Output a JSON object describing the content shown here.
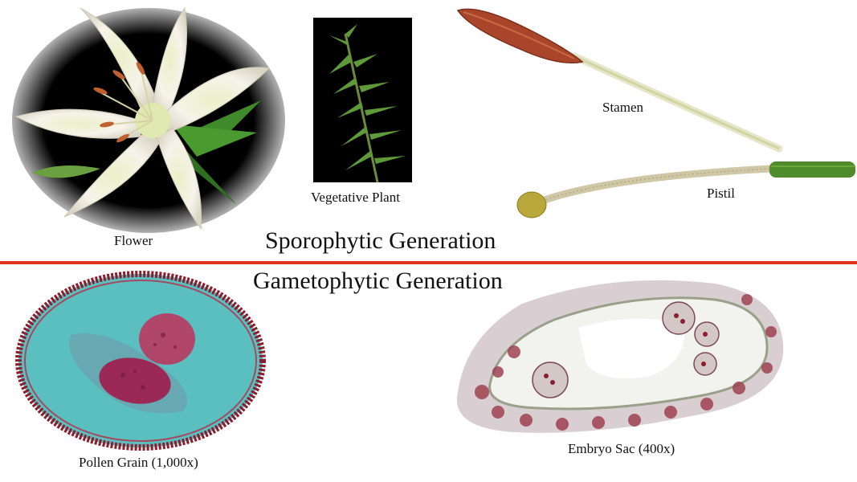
{
  "sporophyte": {
    "heading": "Sporophytic Generation",
    "flower_label": "Flower",
    "vegetative_label": "Vegetative Plant",
    "stamen_label": "Stamen",
    "pistil_label": "Pistil"
  },
  "gametophyte": {
    "heading": "Gametophytic Generation",
    "pollen_label": "Pollen Grain (1,000x)",
    "embryo_label": "Embryo Sac (400x)"
  },
  "colors": {
    "divider": "#e0311f",
    "petal": "#f4f0e6",
    "leaf": "#3f8a2a",
    "anther": "#b85a35",
    "pollen_bg": "#5bbfc0",
    "nucleus": "#9a2a55"
  }
}
